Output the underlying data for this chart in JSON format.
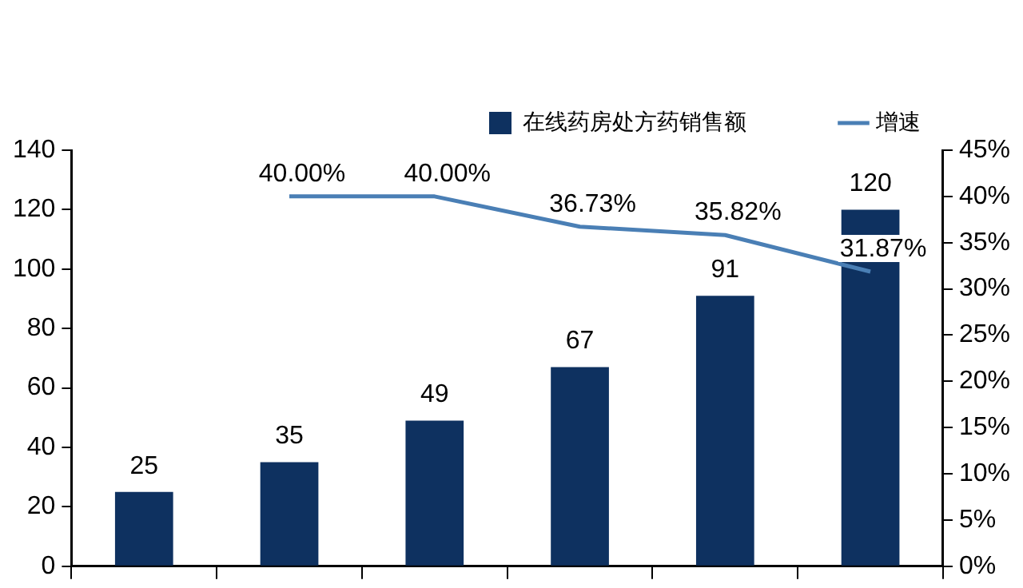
{
  "chart_data": {
    "type": "bar",
    "categories": [
      null,
      null,
      null,
      null,
      null,
      null
    ],
    "series": [
      {
        "name": "在线药房处方药销售额",
        "color": "#0e3160",
        "values": [
          25,
          35,
          49,
          67,
          91,
          120
        ],
        "value_labels": [
          "25",
          "35",
          "49",
          "67",
          "91",
          "120"
        ]
      },
      {
        "name": "增速",
        "type": "line",
        "axis": "y2",
        "color": "#4a7fb5",
        "values": [
          null,
          40.0,
          40.0,
          36.73,
          35.82,
          31.87
        ],
        "value_labels": [
          null,
          "40.00%",
          "40.00%",
          "36.73%",
          "35.82%",
          "31.87%"
        ],
        "marker": "none"
      }
    ],
    "ylim": [
      0,
      140
    ],
    "yticks": [
      0,
      20,
      40,
      60,
      80,
      100,
      120,
      140
    ],
    "y2lim": [
      0,
      45
    ],
    "y2ticks": [
      {
        "value": 0,
        "label": "0%"
      },
      {
        "value": 5,
        "label": "5%"
      },
      {
        "value": 10,
        "label": "10%"
      },
      {
        "value": 15,
        "label": "15%"
      },
      {
        "value": 20,
        "label": "20%"
      },
      {
        "value": 25,
        "label": "25%"
      },
      {
        "value": 30,
        "label": "30%"
      },
      {
        "value": 35,
        "label": "35%"
      },
      {
        "value": 40,
        "label": "40%"
      },
      {
        "value": 45,
        "label": "45%"
      }
    ],
    "grid": false,
    "legend": "top",
    "tick_labels": "y"
  }
}
